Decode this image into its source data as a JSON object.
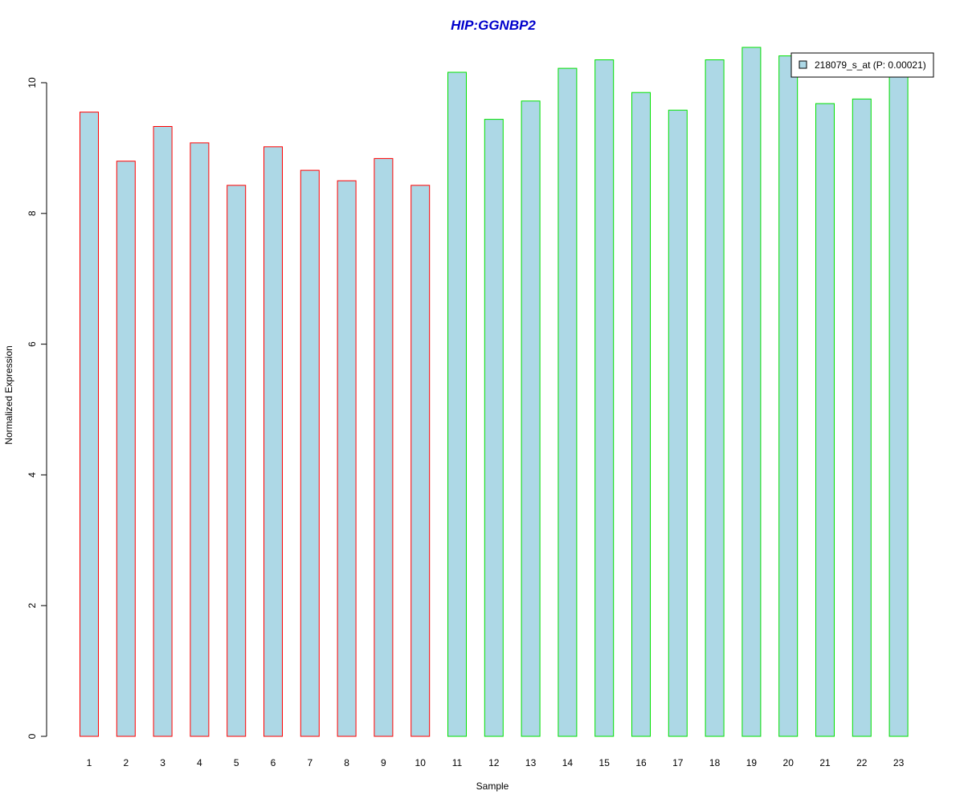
{
  "chart_data": {
    "type": "bar",
    "title": "HIP:GGNBP2",
    "xlabel": "Sample",
    "ylabel": "Normalized Expression",
    "categories": [
      "1",
      "2",
      "3",
      "4",
      "5",
      "6",
      "7",
      "8",
      "9",
      "10",
      "11",
      "12",
      "13",
      "14",
      "15",
      "16",
      "17",
      "18",
      "19",
      "20",
      "21",
      "22",
      "23"
    ],
    "series": [
      {
        "name": "218079_s_at (P: 0.00021)",
        "values": [
          9.55,
          8.8,
          9.33,
          9.08,
          8.43,
          9.02,
          8.66,
          8.5,
          8.84,
          8.43,
          10.16,
          9.44,
          9.72,
          10.22,
          10.35,
          9.85,
          9.58,
          10.35,
          10.54,
          10.41,
          9.68,
          9.75,
          10.18
        ]
      }
    ],
    "groups": [
      {
        "samples": [
          "1",
          "2",
          "3",
          "4",
          "5",
          "6",
          "7",
          "8",
          "9",
          "10"
        ],
        "border_color": "#ff0000"
      },
      {
        "samples": [
          "11",
          "12",
          "13",
          "14",
          "15",
          "16",
          "17",
          "18",
          "19",
          "20",
          "21",
          "22",
          "23"
        ],
        "border_color": "#00e000"
      }
    ],
    "bar_fill_color": "#add8e6",
    "title_color": "#0000cc",
    "ylim": [
      0,
      10.54
    ],
    "yticks": [
      0,
      2,
      4,
      6,
      8,
      10
    ],
    "grid": false,
    "legend_position": "top-right"
  }
}
